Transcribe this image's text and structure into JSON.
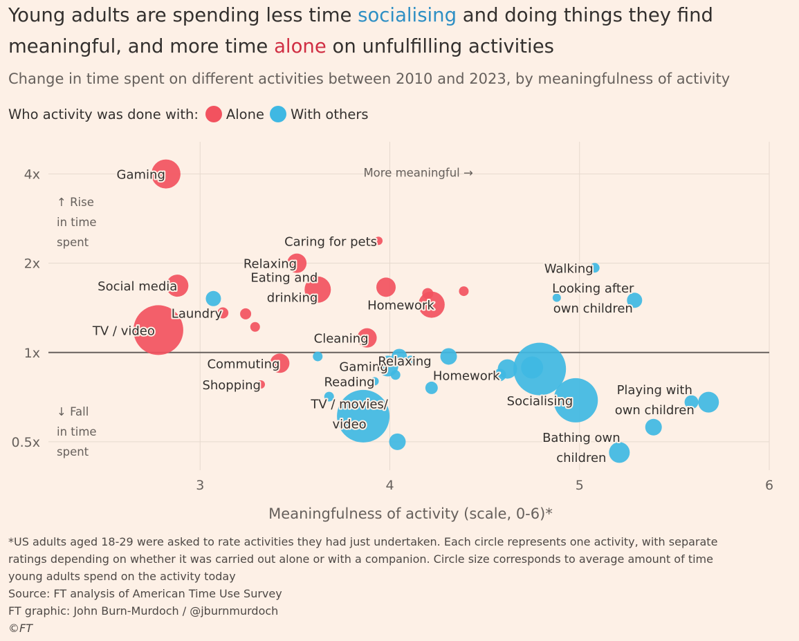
{
  "title": {
    "part1": "Young adults are spending less time ",
    "kw1": "socialising",
    "part2": " and doing things they find meaningful, and more time ",
    "kw2": "alone",
    "part3": " on unfulfilling activities"
  },
  "subtitle": "Change in time spent on different activities between 2010 and 2023, by meaningfulness of activity",
  "legend": {
    "prefix": "Who activity was done with:",
    "items": [
      {
        "label": "Alone",
        "color": "#f2525f"
      },
      {
        "label": "With others",
        "color": "#3fb8e3"
      }
    ]
  },
  "footnote": {
    "lines": [
      "*US adults aged 18-29 were asked to rate activities they had just undertaken. Each circle represents one activity, with separate",
      "ratings depending on whether it was carried out alone or with a companion. Circle size corresponds to average amount of time",
      "young adults spend on the activity today"
    ],
    "source": "Source: FT analysis of American Time Use Survey",
    "credit": "FT graphic: John Burn-Murdoch / @jburnmurdoch",
    "copyright": "©FT"
  },
  "colors": {
    "alone": "#f2525f",
    "others": "#3fb8e3",
    "background": "#fdf0e6"
  },
  "chart_data": {
    "type": "scatter",
    "xlabel": "Meaningfulness of activity (scale, 0-6)*",
    "xlim": [
      2.0,
      6.0
    ],
    "xticks": [
      3,
      4,
      5,
      6
    ],
    "y_scale": "log2",
    "ylim": [
      0.38,
      5.0
    ],
    "yticks": [
      {
        "value": 4,
        "label": "4x"
      },
      {
        "value": 2,
        "label": "2x"
      },
      {
        "value": 1,
        "label": "1x"
      },
      {
        "value": 0.5,
        "label": "0.5x"
      }
    ],
    "grid": true,
    "baseline": 1,
    "annotations": [
      {
        "text": "More meaningful →",
        "x": 4.15,
        "y": 4.0
      },
      {
        "lines": [
          "↑ Rise",
          "in time",
          "spent"
        ],
        "x": 2.1,
        "y": 2.8
      },
      {
        "lines": [
          "↓ Fall",
          "in time",
          "spent"
        ],
        "x": 2.1,
        "y": 0.55
      }
    ],
    "series": [
      {
        "name": "Alone",
        "color": "#f2525f",
        "points": [
          {
            "x": 2.82,
            "y": 4.0,
            "r": 21,
            "lines": [
              "Gaming"
            ],
            "anchor": "end",
            "dx": -1,
            "dy": 0
          },
          {
            "x": 2.78,
            "y": 1.19,
            "r": 36,
            "lines": [
              "TV / video"
            ],
            "anchor": "start",
            "dx": -95,
            "dy": 0
          },
          {
            "x": 2.88,
            "y": 1.68,
            "r": 16,
            "lines": [
              "Social media"
            ],
            "anchor": "end",
            "dx": 0,
            "dy": 0
          },
          {
            "x": 3.12,
            "y": 1.36,
            "r": 8,
            "lines": [
              "Laundry"
            ],
            "anchor": "end",
            "dx": -1,
            "dy": 0
          },
          {
            "x": 3.24,
            "y": 1.35,
            "r": 8
          },
          {
            "x": 3.29,
            "y": 1.22,
            "r": 7
          },
          {
            "x": 3.42,
            "y": 0.92,
            "r": 14,
            "lines": [
              "Commuting"
            ],
            "anchor": "end",
            "dx": 0,
            "dy": 0
          },
          {
            "x": 3.32,
            "y": 0.78,
            "r": 6,
            "lines": [
              "Shopping"
            ],
            "anchor": "end",
            "dx": 0,
            "dy": 0
          },
          {
            "x": 3.51,
            "y": 2.0,
            "r": 14,
            "lines": [
              "Relaxing"
            ],
            "anchor": "end",
            "dx": 0,
            "dy": 0
          },
          {
            "x": 3.62,
            "y": 1.63,
            "r": 19,
            "lines": [
              "Eating and",
              "drinking"
            ],
            "anchor": "end",
            "dx": 0,
            "dy": -4
          },
          {
            "x": 3.94,
            "y": 2.38,
            "r": 6,
            "lines": [
              "Caring for pets"
            ],
            "anchor": "end",
            "dx": -2,
            "dy": 0
          },
          {
            "x": 3.88,
            "y": 1.12,
            "r": 14,
            "lines": [
              "Cleaning"
            ],
            "anchor": "end",
            "dx": 2,
            "dy": 0
          },
          {
            "x": 3.98,
            "y": 1.66,
            "r": 14
          },
          {
            "x": 4.2,
            "y": 1.58,
            "r": 8
          },
          {
            "x": 4.39,
            "y": 1.61,
            "r": 7
          },
          {
            "x": 4.22,
            "y": 1.45,
            "r": 19,
            "lines": [
              "Homework"
            ],
            "anchor": "end",
            "dx": 4,
            "dy": 0
          }
        ]
      },
      {
        "name": "With others",
        "color": "#3fb8e3",
        "points": [
          {
            "x": 3.07,
            "y": 1.52,
            "r": 11
          },
          {
            "x": 3.62,
            "y": 0.97,
            "r": 7
          },
          {
            "x": 3.68,
            "y": 0.71,
            "r": 7
          },
          {
            "x": 3.86,
            "y": 0.61,
            "r": 38,
            "lines": [
              "TV / movies/",
              "video"
            ],
            "anchor": "middle",
            "dx": -20,
            "dy": -4
          },
          {
            "x": 3.92,
            "y": 0.8,
            "r": 6,
            "lines": [
              "Reading"
            ],
            "anchor": "end",
            "dx": 0,
            "dy": 0
          },
          {
            "x": 3.99,
            "y": 0.9,
            "r": 15,
            "lines": [
              "Gaming"
            ],
            "anchor": "end",
            "dx": 0,
            "dy": 0
          },
          {
            "x": 4.03,
            "y": 0.84,
            "r": 7
          },
          {
            "x": 4.05,
            "y": 0.97,
            "r": 11
          },
          {
            "x": 4.04,
            "y": 0.5,
            "r": 12
          },
          {
            "x": 4.11,
            "y": 0.94,
            "r": 7,
            "lines": [
              "Relaxing"
            ],
            "anchor": "end",
            "dx": 30,
            "dy": 0
          },
          {
            "x": 4.22,
            "y": 0.76,
            "r": 9
          },
          {
            "x": 4.31,
            "y": 0.97,
            "r": 12
          },
          {
            "x": 4.58,
            "y": 0.84,
            "r": 9,
            "lines": [
              "Homework"
            ],
            "anchor": "end",
            "dx": 0,
            "dy": 0
          },
          {
            "x": 4.62,
            "y": 0.88,
            "r": 14
          },
          {
            "x": 4.75,
            "y": 0.89,
            "r": 16
          },
          {
            "x": 4.79,
            "y": 0.88,
            "r": 38
          },
          {
            "x": 4.98,
            "y": 0.69,
            "r": 32,
            "lines": [
              "Socialising"
            ],
            "anchor": "end",
            "dx": -4,
            "dy": 0
          },
          {
            "x": 5.08,
            "y": 1.93,
            "r": 7,
            "lines": [
              "Walking"
            ],
            "anchor": "end",
            "dx": -2,
            "dy": 0
          },
          {
            "x": 4.88,
            "y": 1.53,
            "r": 6
          },
          {
            "x": 5.29,
            "y": 1.5,
            "r": 11,
            "lines": [
              "Looking after",
              "own children"
            ],
            "anchor": "middle",
            "dx": -60,
            "dy": -4
          },
          {
            "x": 5.21,
            "y": 0.46,
            "r": 15,
            "lines": [
              "Bathing own",
              "children"
            ],
            "anchor": "middle",
            "dx": -55,
            "dy": -8
          },
          {
            "x": 5.39,
            "y": 0.56,
            "r": 12
          },
          {
            "x": 5.59,
            "y": 0.68,
            "r": 10
          },
          {
            "x": 5.68,
            "y": 0.68,
            "r": 15,
            "lines": [
              "Playing with",
              "own children"
            ],
            "anchor": "middle",
            "dx": -78,
            "dy": -4
          }
        ]
      }
    ]
  }
}
